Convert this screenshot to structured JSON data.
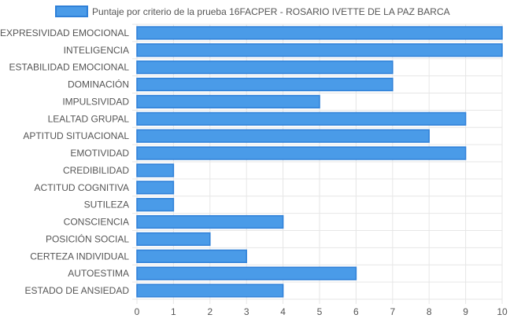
{
  "chart_data": {
    "type": "bar",
    "orientation": "horizontal",
    "categories": [
      "EXPRESIVIDAD EMOCIONAL",
      "INTELIGENCIA",
      "ESTABILIDAD EMOCIONAL",
      "DOMINACIÓN",
      "IMPULSIVIDAD",
      "LEALTAD GRUPAL",
      "APTITUD SITUACIONAL",
      "EMOTIVIDAD",
      "CREDIBILIDAD",
      "ACTITUD COGNITIVA",
      "SUTILEZA",
      "CONSCIENCIA",
      "POSICIÓN SOCIAL",
      "CERTEZA INDIVIDUAL",
      "AUTOESTIMA",
      "ESTADO DE ANSIEDAD"
    ],
    "series": [
      {
        "name": "Puntaje por criterio de la prueba 16FACPER - ROSARIO IVETTE DE LA PAZ BARCA",
        "values": [
          10,
          10,
          7,
          7,
          5,
          9,
          8,
          9,
          1,
          1,
          1,
          4,
          2,
          3,
          6,
          4
        ],
        "color": "#4a9be8",
        "border_color": "#2f80d8"
      }
    ],
    "xlim": [
      0,
      10
    ],
    "x_ticks": [
      0,
      1,
      2,
      3,
      4,
      5,
      6,
      7,
      8,
      9,
      10
    ],
    "grid": true,
    "legend_position": "top"
  }
}
